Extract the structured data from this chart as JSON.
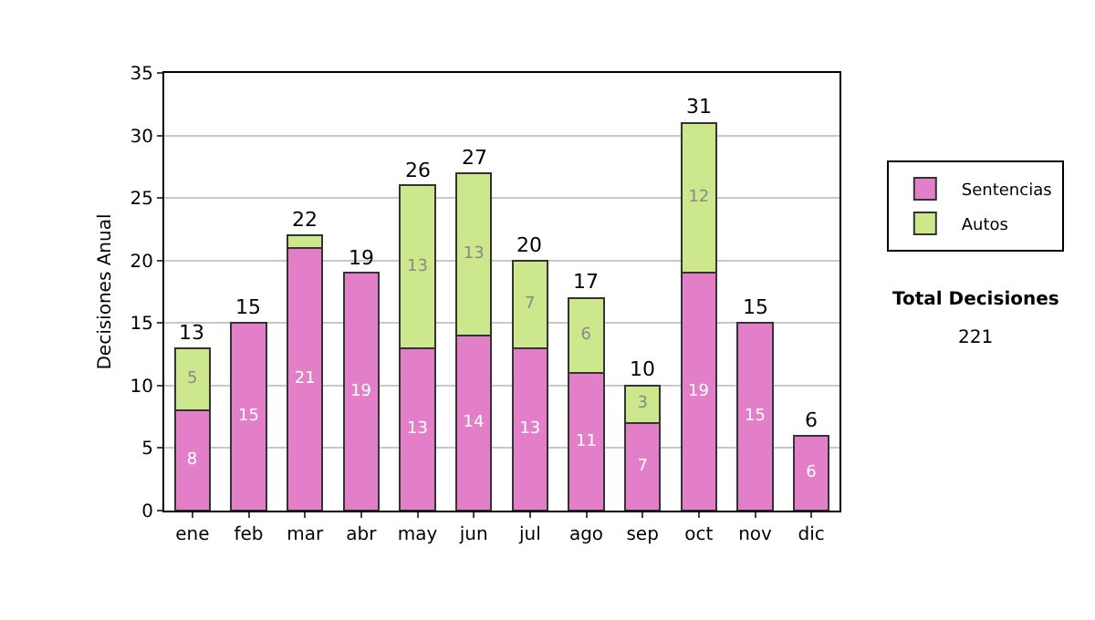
{
  "chart_data": {
    "type": "bar",
    "stacked": true,
    "ylabel": "Decisiones Anual",
    "categories": [
      "ene",
      "feb",
      "mar",
      "abr",
      "may",
      "jun",
      "jul",
      "ago",
      "sep",
      "oct",
      "nov",
      "dic"
    ],
    "series": [
      {
        "name": "Sentencias",
        "color": "#e27fc8",
        "values": [
          8,
          15,
          21,
          19,
          13,
          14,
          13,
          11,
          7,
          19,
          15,
          6
        ],
        "value_labels": [
          "8",
          "15",
          "21",
          "19",
          "13",
          "14",
          "13",
          "11",
          "7",
          "19",
          "15",
          "6"
        ]
      },
      {
        "name": "Autos",
        "color": "#cde78c",
        "values": [
          5,
          null,
          1,
          null,
          13,
          13,
          7,
          6,
          3,
          12,
          null,
          null
        ],
        "value_labels": [
          "5",
          null,
          null,
          null,
          "13",
          "13",
          "7",
          "6",
          "3",
          "12",
          null,
          null
        ]
      }
    ],
    "totals": [
      "13",
      "15",
      "22",
      "19",
      "26",
      "27",
      "20",
      "17",
      "10",
      "31",
      "15",
      "6"
    ],
    "ylim": [
      0,
      35
    ],
    "yticks": [
      0,
      5,
      10,
      15,
      20,
      25,
      30,
      35
    ],
    "grid": "y",
    "legend": "right",
    "annotations": [
      "Total Decisiones",
      "221"
    ]
  }
}
